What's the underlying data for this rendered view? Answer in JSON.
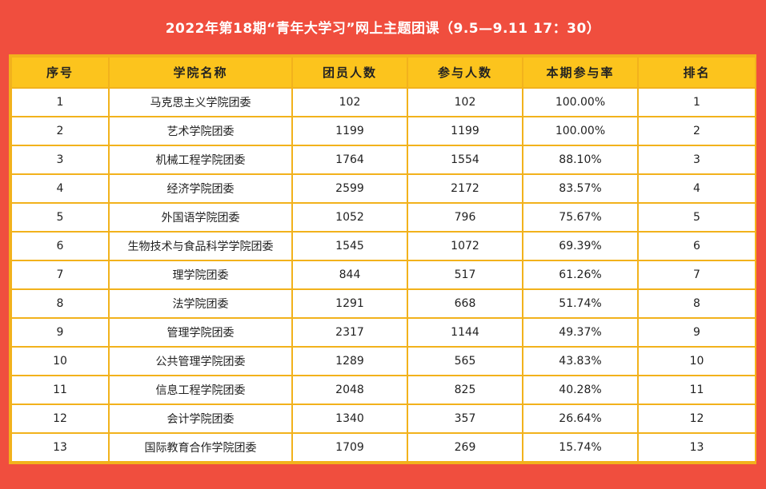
{
  "title": "2022年第18期“青年大学习”网上主题团课（9.5—9.11 17：30）",
  "columns": [
    "序号",
    "学院名称",
    "团员人数",
    "参与人数",
    "本期参与率",
    "排名"
  ],
  "rows": [
    [
      "1",
      "马克思主义学院团委",
      "102",
      "102",
      "100.00%",
      "1"
    ],
    [
      "2",
      "艺术学院团委",
      "1199",
      "1199",
      "100.00%",
      "2"
    ],
    [
      "3",
      "机械工程学院团委",
      "1764",
      "1554",
      "88.10%",
      "3"
    ],
    [
      "4",
      "经济学院团委",
      "2599",
      "2172",
      "83.57%",
      "4"
    ],
    [
      "5",
      "外国语学院团委",
      "1052",
      "796",
      "75.67%",
      "5"
    ],
    [
      "6",
      "生物技术与食品科学学院团委",
      "1545",
      "1072",
      "69.39%",
      "6"
    ],
    [
      "7",
      "理学院团委",
      "844",
      "517",
      "61.26%",
      "7"
    ],
    [
      "8",
      "法学院团委",
      "1291",
      "668",
      "51.74%",
      "8"
    ],
    [
      "9",
      "管理学院团委",
      "2317",
      "1144",
      "49.37%",
      "9"
    ],
    [
      "10",
      "公共管理学院团委",
      "1289",
      "565",
      "43.83%",
      "10"
    ],
    [
      "11",
      "信息工程学院团委",
      "2048",
      "825",
      "40.28%",
      "11"
    ],
    [
      "12",
      "会计学院团委",
      "1340",
      "357",
      "26.64%",
      "12"
    ],
    [
      "13",
      "国际教育合作学院团委",
      "1709",
      "269",
      "15.74%",
      "13"
    ]
  ]
}
